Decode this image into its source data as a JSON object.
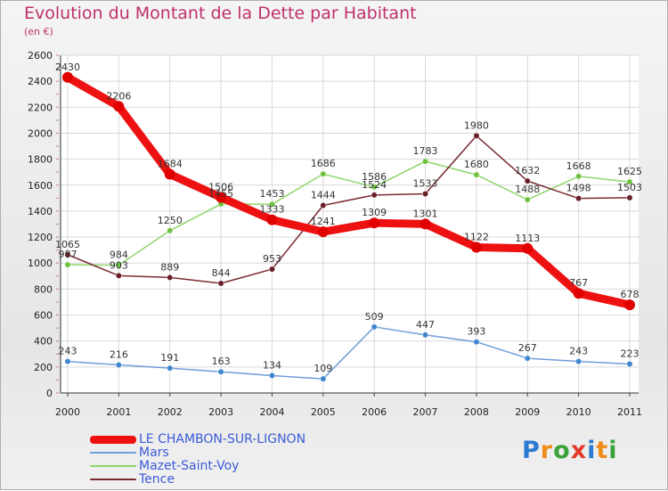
{
  "title": "Evolution du Montant de la Dette par Habitant",
  "subtitle": "(en €)",
  "brand": "Proxiti",
  "colors": {
    "title": "#c0306c",
    "legend_text": "#3a5bd8",
    "grid": "#d9d9d9"
  },
  "chart_data": {
    "type": "line",
    "title": "Evolution du Montant de la Dette par Habitant",
    "ylabel": "(en €)",
    "x": [
      "2000",
      "2001",
      "2002",
      "2003",
      "2004",
      "2005",
      "2006",
      "2007",
      "2008",
      "2009",
      "2010",
      "2011"
    ],
    "ylim": [
      0,
      2600
    ],
    "yticks": [
      0,
      200,
      400,
      600,
      800,
      1000,
      1200,
      1400,
      1600,
      1800,
      2000,
      2200,
      2400,
      2600
    ],
    "grid": true,
    "legend_position": "bottom-left",
    "series": [
      {
        "name": "LE CHAMBON-SUR-LIGNON",
        "color": "#ee1111",
        "marker": "#e00000",
        "values": [
          2430,
          2206,
          1684,
          1506,
          1333,
          1241,
          1309,
          1301,
          1122,
          1113,
          767,
          678
        ]
      },
      {
        "name": "Mars",
        "color": "#6f9ed8",
        "marker": "#3f86cf",
        "values": [
          243,
          216,
          191,
          163,
          134,
          109,
          509,
          447,
          393,
          267,
          243,
          223
        ]
      },
      {
        "name": "Mazet-Saint-Voy",
        "color": "#8ed66a",
        "marker": "#6fc23f",
        "values": [
          987,
          984,
          1250,
          1455,
          1453,
          1686,
          1586,
          1783,
          1680,
          1488,
          1668,
          1625
        ]
      },
      {
        "name": "Tence",
        "color": "#7a2b33",
        "marker": "#6a1f28",
        "values": [
          1065,
          903,
          889,
          844,
          953,
          1444,
          1524,
          1533,
          1980,
          1632,
          1498,
          1503
        ]
      }
    ]
  }
}
